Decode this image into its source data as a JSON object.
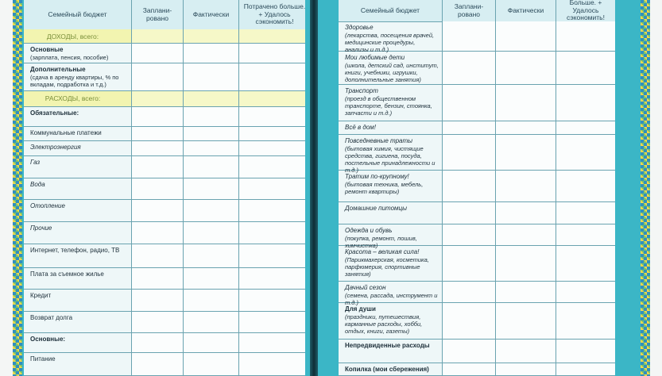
{
  "left_page": {
    "columns": [
      "Семейный бюджет",
      "Заплани-ровано",
      "Фактически",
      "Потрачено больше. + Удалось сэкономить!"
    ],
    "rows": [
      {
        "label": "ДОХОДЫ, всего:"
      },
      {
        "label": "Основные",
        "note": "(зарплата, пенсия, пособие)"
      },
      {
        "label": "Дополнительные",
        "note": "(сдача в аренду квартиры, % по вкладам, подработка и т.д.)"
      },
      {
        "label": "РАСХОДЫ, всего:"
      },
      {
        "label": "Обязательные:"
      },
      {
        "label": "Коммунальные платежи"
      },
      {
        "label": "Электроэнергия"
      },
      {
        "label": "Газ"
      },
      {
        "label": "Вода"
      },
      {
        "label": "Отопление"
      },
      {
        "label": "Прочие"
      },
      {
        "label": "Интернет, телефон, радио, ТВ"
      },
      {
        "label": "Плата за съемное жилье"
      },
      {
        "label": "Кредит"
      },
      {
        "label": "Возврат долга"
      },
      {
        "label": "Основные:"
      },
      {
        "label": "Питание"
      }
    ]
  },
  "right_page": {
    "columns": [
      "Семейный бюджет",
      "Заплани-ровано",
      "Фактически",
      "Больше. + Удалось сэкономить!"
    ],
    "rows": [
      {
        "label": "Здоровье",
        "note": "(лекарства, посещения врачей, медицинские процедуры, анализы и т.д.)"
      },
      {
        "label": "Мои любимые дети",
        "note": "(школа, детский сад, институт, книги, учебники, игрушки, дополнительные занятия)"
      },
      {
        "label": "Транспорт",
        "note": "(проезд в общественном транспорте, бензин, стоянка, запчасти и т.д.)"
      },
      {
        "label": "Всё в дом!"
      },
      {
        "label": "Повседневные траты",
        "note": "(бытовая химия, чистящие средства, гигиена, посуда, постельные принадлежности и т.д.)"
      },
      {
        "label": "Тратим по-крупному!",
        "note": "(бытовая техника, мебель, ремонт квартиры)"
      },
      {
        "label": "Домашние питомцы"
      },
      {
        "label": "Одежда и обувь",
        "note": "(покупка, ремонт, пошив, химчистка)"
      },
      {
        "label": "Красота – великая сила!",
        "note": "(Парикмахерская, косметика, парфюмерия, спортивные занятия)"
      },
      {
        "label": "Дачный сезон",
        "note": "(семена, рассада, инструмент и т.д.)"
      },
      {
        "label": "Для души",
        "note": "(праздники, путешествия, карманные расходы, хобби, отдых, книги, газеты)"
      },
      {
        "label": "Непредвиденные расходы"
      },
      {
        "label": "Копилка (мои сбережения)"
      }
    ]
  }
}
